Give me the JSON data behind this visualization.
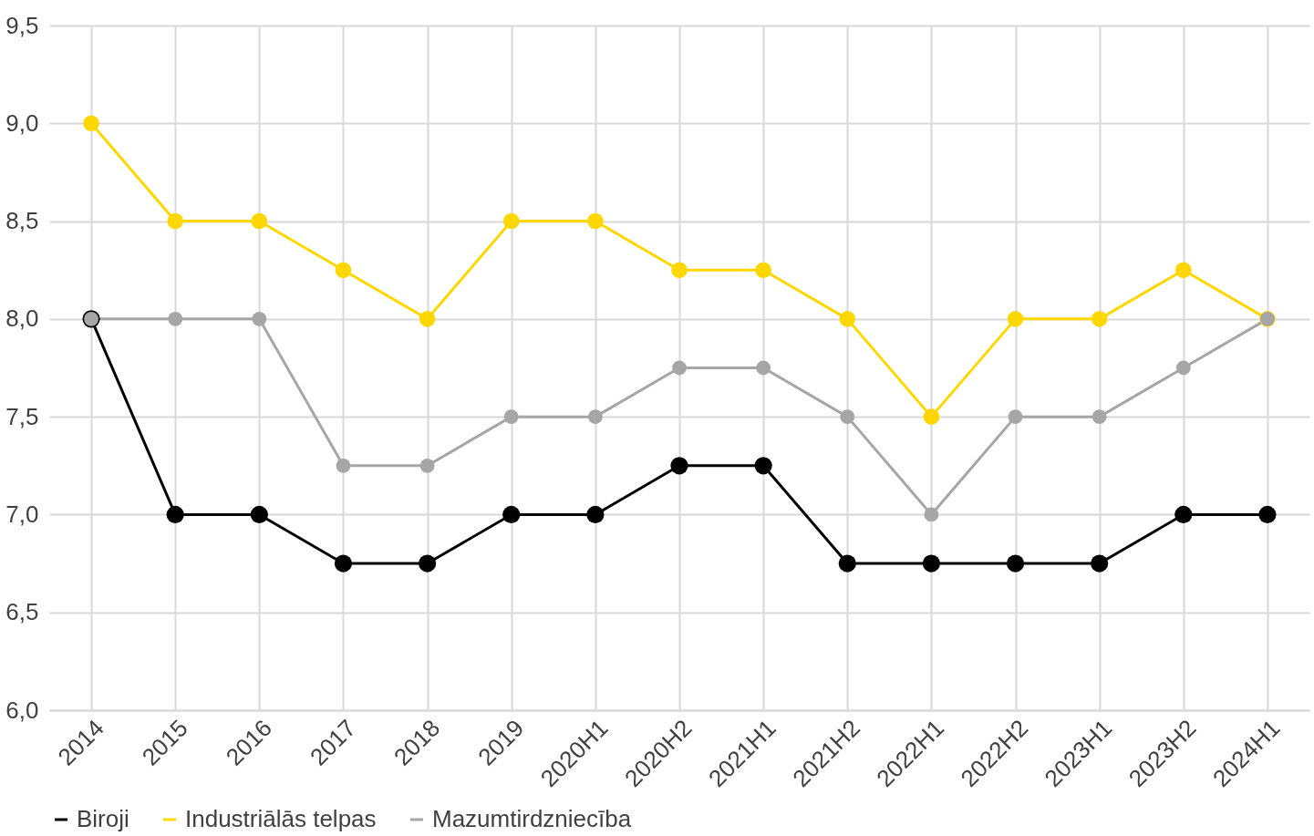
{
  "chart_data": {
    "type": "line",
    "categories": [
      "2014",
      "2015",
      "2016",
      "2017",
      "2018",
      "2019",
      "2020H1",
      "2020H2",
      "2021H1",
      "2021H2",
      "2022H1",
      "2022H2",
      "2023H1",
      "2023H2",
      "2024H1"
    ],
    "series": [
      {
        "name": "Biroji",
        "color": "#000000",
        "values": [
          8,
          7,
          7,
          6.75,
          6.75,
          7,
          7,
          7.25,
          7.25,
          6.75,
          6.75,
          6.75,
          6.75,
          7,
          7
        ]
      },
      {
        "name": "Industriālās telpas",
        "color": "#ffd700",
        "values": [
          9,
          8.5,
          8.5,
          8.25,
          8,
          8.5,
          8.5,
          8.25,
          8.25,
          8,
          7.5,
          8,
          8,
          8.25,
          8
        ]
      },
      {
        "name": "Mazumtirdzniecība",
        "color": "#a6a6a6",
        "values": [
          8,
          8,
          8,
          7.25,
          7.25,
          7.5,
          7.5,
          7.75,
          7.75,
          7.5,
          7,
          7.5,
          7.5,
          7.75,
          8
        ]
      }
    ],
    "ylim": [
      6,
      9.5
    ],
    "yticks": [
      {
        "value": 6,
        "label": "6,0"
      },
      {
        "value": 6.5,
        "label": "6,5"
      },
      {
        "value": 7,
        "label": "7,0"
      },
      {
        "value": 7.5,
        "label": "7,5"
      },
      {
        "value": 8,
        "label": "8,0"
      },
      {
        "value": 8.5,
        "label": "8,5"
      },
      {
        "value": 9,
        "label": "9,0"
      },
      {
        "value": 9.5,
        "label": "9,5"
      }
    ],
    "grid": true,
    "legend": "bottom",
    "marker": "circle",
    "line_style": "solid"
  }
}
